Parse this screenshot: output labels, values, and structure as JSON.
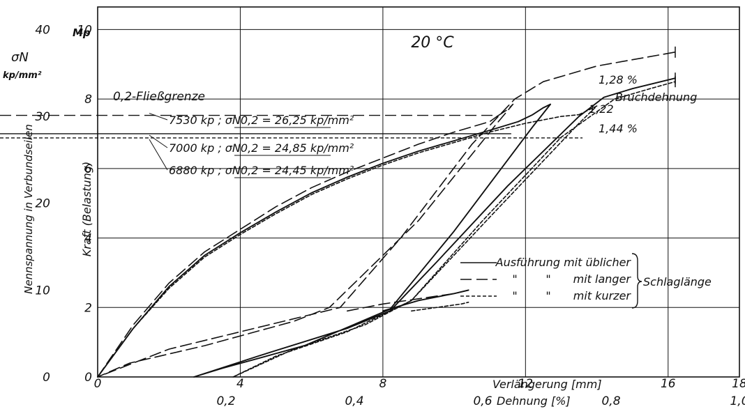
{
  "chart_data": {
    "type": "line",
    "title": "20 °C",
    "xlabel": "Verlängerung [mm]",
    "x2label": "Dehnung  [%]",
    "ylabel": "Kraft (Belastung)",
    "yunit": "Mp",
    "y2label": "Nennspannung in Verbundseilen",
    "y2symbol": "σN",
    "y2unit": "kp/mm²",
    "xlim": [
      0,
      18
    ],
    "ylim": [
      0,
      10
    ],
    "y2lim": [
      0,
      40
    ],
    "xticks": [
      "0",
      "4",
      "8",
      "12",
      "16",
      "18"
    ],
    "x2ticks": [
      "0,2",
      "0,4",
      "0,6",
      "0,8",
      "1,0"
    ],
    "yticks": [
      "0",
      "2",
      "4",
      "6",
      "8",
      "10"
    ],
    "y2ticks": [
      "0",
      "10",
      "20",
      "30",
      "40"
    ],
    "grid": true,
    "series": [
      {
        "name": "Ausführung mit üblicher",
        "style": "solid",
        "loading": [
          [
            0,
            0
          ],
          [
            1,
            1.4
          ],
          [
            2,
            2.6
          ],
          [
            3,
            3.5
          ],
          [
            4,
            4.15
          ],
          [
            5,
            4.75
          ],
          [
            6,
            5.3
          ],
          [
            7,
            5.75
          ],
          [
            8,
            6.15
          ],
          [
            9,
            6.5
          ],
          [
            10,
            6.8
          ],
          [
            11,
            7.1
          ],
          [
            11.8,
            7.35
          ]
        ],
        "unload_reload": [
          [
            11.8,
            7.35
          ],
          [
            12.2,
            7.55
          ],
          [
            12.5,
            7.75
          ],
          [
            12.7,
            7.85
          ],
          [
            12.2,
            7.2
          ],
          [
            10,
            4.2
          ],
          [
            8.2,
            1.95
          ],
          [
            5.8,
            0.9
          ],
          [
            3.5,
            0.25
          ],
          [
            2.7,
            0
          ],
          [
            4.5,
            0.6
          ],
          [
            7,
            1.4
          ],
          [
            8.2,
            1.9
          ],
          [
            9.5,
            3.3
          ],
          [
            11.5,
            5.5
          ],
          [
            13.5,
            7.5
          ],
          [
            14.2,
            8.05
          ],
          [
            15,
            8.3
          ],
          [
            16.2,
            8.6
          ]
        ],
        "tail": [
          [
            8,
            1.9
          ],
          [
            9,
            2.2
          ],
          [
            10,
            2.4
          ],
          [
            10.4,
            2.5
          ]
        ]
      },
      {
        "name": "mit langer",
        "style": "dashed",
        "loading": [
          [
            0,
            0
          ],
          [
            1,
            1.5
          ],
          [
            2,
            2.7
          ],
          [
            3,
            3.6
          ],
          [
            4,
            4.25
          ],
          [
            5,
            4.9
          ],
          [
            6,
            5.45
          ],
          [
            7,
            5.9
          ],
          [
            8,
            6.3
          ],
          [
            9,
            6.7
          ],
          [
            10,
            7.05
          ],
          [
            11,
            7.35
          ],
          [
            11.2,
            7.5
          ]
        ],
        "unload_reload": [
          [
            11.2,
            7.5
          ],
          [
            11.5,
            7.7
          ],
          [
            11.65,
            7.85
          ],
          [
            11.2,
            7.3
          ],
          [
            9,
            4.5
          ],
          [
            6.5,
            2
          ],
          [
            5.5,
            1.6
          ],
          [
            3,
            0.9
          ],
          [
            0.9,
            0.4
          ],
          [
            0,
            0
          ],
          [
            2,
            0.8
          ],
          [
            4,
            1.3
          ],
          [
            6.8,
            2
          ],
          [
            8.5,
            4
          ],
          [
            10.5,
            6.7
          ],
          [
            11.7,
            8
          ],
          [
            12.5,
            8.5
          ],
          [
            14,
            8.95
          ],
          [
            16.2,
            9.35
          ]
        ],
        "tail": [
          [
            7,
            1.9
          ],
          [
            8,
            2.1
          ],
          [
            9,
            2.25
          ],
          [
            10,
            2.4
          ],
          [
            10.4,
            2.5
          ]
        ]
      },
      {
        "name": "mit kurzer",
        "style": "dotted",
        "loading": [
          [
            0,
            0
          ],
          [
            1,
            1.4
          ],
          [
            2,
            2.55
          ],
          [
            3,
            3.45
          ],
          [
            4,
            4.1
          ],
          [
            5,
            4.7
          ],
          [
            6,
            5.25
          ],
          [
            7,
            5.7
          ],
          [
            8,
            6.1
          ],
          [
            9,
            6.45
          ],
          [
            10,
            6.75
          ],
          [
            11,
            7.05
          ],
          [
            12,
            7.3
          ],
          [
            13,
            7.5
          ],
          [
            13.5,
            7.55
          ]
        ],
        "unload_reload": [
          [
            13.5,
            7.55
          ],
          [
            13.9,
            7.75
          ],
          [
            14,
            7.8
          ],
          [
            13.5,
            7.3
          ],
          [
            11,
            4.6
          ],
          [
            8.8,
            2.2
          ],
          [
            7,
            1.3
          ],
          [
            5,
            0.6
          ],
          [
            3.8,
            0
          ],
          [
            5.5,
            0.8
          ],
          [
            7.5,
            1.5
          ],
          [
            8.8,
            2.2
          ],
          [
            10.8,
            4.5
          ],
          [
            13,
            6.9
          ],
          [
            14.5,
            8
          ],
          [
            15.5,
            8.3
          ],
          [
            16.2,
            8.5
          ]
        ],
        "tail": [
          [
            8.8,
            1.9
          ],
          [
            9.5,
            2
          ],
          [
            10.2,
            2.1
          ],
          [
            10.4,
            2.15
          ]
        ]
      }
    ],
    "legend": {
      "rows": [
        {
          "style": "solid",
          "ditto1": "",
          "ditto2": "",
          "text": "Ausführung mit üblicher"
        },
        {
          "style": "dashed",
          "ditto1": "\"",
          "ditto2": "\"",
          "text": "mit langer"
        },
        {
          "style": "dotted",
          "ditto1": "\"",
          "ditto2": "\"",
          "text": "mit kurzer"
        }
      ],
      "brace_label": "Schlaglänge",
      "placement": "lower-right"
    },
    "yield": {
      "heading": "0,2-Fließgrenze",
      "entries": [
        {
          "force_kp": 7530,
          "label": "7530 kp ;",
          "sym": "σN0,2",
          "value": "= 26,25 kp/mm²",
          "style": "dashed",
          "y": 7.53
        },
        {
          "force_kp": 7000,
          "label": "7000 kp ;",
          "sym": "σN0,2",
          "value": "= 24,85 kp/mm²",
          "style": "solid",
          "y": 7.0
        },
        {
          "force_kp": 6880,
          "label": "6880 kp ;",
          "sym": "σN0,2",
          "value": "= 24,45 kp/mm²",
          "style": "dotted",
          "y": 6.88
        }
      ]
    },
    "annotations": {
      "break_label": "Bruchdehnung",
      "break_values": [
        "1,28 %",
        "1,22",
        "1,44 %"
      ]
    }
  }
}
